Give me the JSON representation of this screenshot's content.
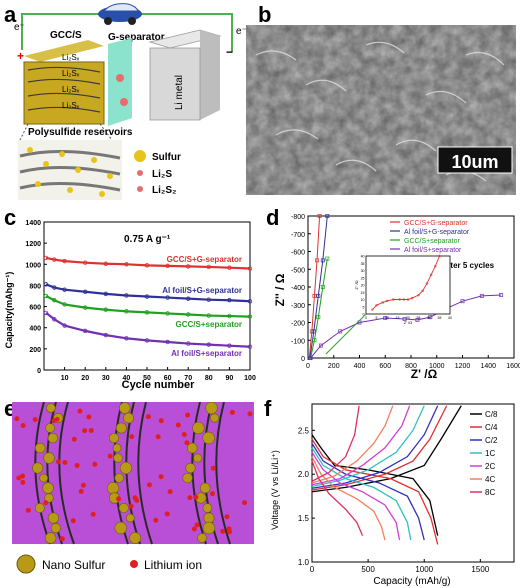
{
  "panel_labels": {
    "a": "a",
    "b": "b",
    "c": "c",
    "d": "d",
    "e": "e",
    "f": "f"
  },
  "panel_a": {
    "electron_left": "e⁻",
    "electron_right": "e⁻",
    "plus": "+",
    "minus": "−",
    "cathode_label": "GCC/S",
    "separator_label": "G-separator",
    "anode_label": "Li metal",
    "reservoir_label": "Polysulfide reservoirs",
    "layer_labels": [
      "Li₂Sₓ",
      "Li₂Sₓ",
      "Li₂Sₓ",
      "Li₂Sₓ"
    ],
    "legend": [
      "Sulfur",
      "Li₂S",
      "Li₂S₂"
    ],
    "colors": {
      "sulfur": "#e6c419",
      "li2s": "#e86c6c",
      "separator": "#7fe0c8",
      "lithium": "#cfcfcf"
    }
  },
  "panel_b": {
    "scale_bar": "10um"
  },
  "panel_e": {
    "legend": [
      "Nano Sulfur",
      "Lithium ion"
    ],
    "colors": {
      "background": "#b84fd6",
      "sulfur": "#b89a16",
      "lithium": "#e02020"
    }
  },
  "chart_data": [
    {
      "panel": "c",
      "type": "scatter",
      "annotation": "0.75 A g⁻¹",
      "xlabel": "Cycle number",
      "ylabel": "Capacity(mAhg⁻¹)",
      "xlim": [
        0,
        100
      ],
      "ylim": [
        0,
        1400
      ],
      "xticks": [
        10,
        20,
        30,
        40,
        50,
        60,
        70,
        80,
        90,
        100
      ],
      "yticks": [
        0,
        200,
        400,
        600,
        800,
        1000,
        1200,
        1400
      ],
      "series": [
        {
          "name": "GCC/S+G-separator",
          "color": "#e03030",
          "x": [
            1,
            5,
            10,
            20,
            30,
            40,
            50,
            60,
            70,
            80,
            90,
            100
          ],
          "y": [
            1060,
            1045,
            1030,
            1015,
            1005,
            1000,
            990,
            985,
            980,
            975,
            968,
            960
          ]
        },
        {
          "name": "Al foil/S+G-separator",
          "color": "#30309a",
          "x": [
            1,
            5,
            10,
            20,
            30,
            40,
            50,
            60,
            70,
            80,
            90,
            100
          ],
          "y": [
            810,
            780,
            760,
            740,
            720,
            705,
            695,
            685,
            675,
            665,
            660,
            650
          ]
        },
        {
          "name": "GCC/S+separator",
          "color": "#20a020",
          "x": [
            1,
            5,
            10,
            20,
            30,
            40,
            50,
            60,
            70,
            80,
            90,
            100
          ],
          "y": [
            700,
            660,
            620,
            590,
            570,
            555,
            545,
            535,
            525,
            515,
            510,
            505
          ]
        },
        {
          "name": "Al foil/S+separator",
          "color": "#7030b0",
          "x": [
            1,
            5,
            10,
            20,
            30,
            40,
            50,
            60,
            70,
            80,
            90,
            100
          ],
          "y": [
            540,
            480,
            420,
            370,
            330,
            300,
            280,
            265,
            250,
            240,
            230,
            220
          ]
        }
      ]
    },
    {
      "panel": "d",
      "type": "line",
      "annotation": "After 5 cycles",
      "xlabel": "Z' /Ω",
      "ylabel": "Z'' / Ω",
      "xlim": [
        0,
        1600
      ],
      "ylim": [
        -800,
        0
      ],
      "xticks": [
        0,
        200,
        400,
        600,
        800,
        1000,
        1200,
        1400,
        1600
      ],
      "yticks": [
        -800,
        -700,
        -600,
        -500,
        -400,
        -300,
        -200,
        -100,
        0
      ],
      "series": [
        {
          "name": "GCC/S+G-separator",
          "color": "#e03030",
          "x": [
            10,
            30,
            50,
            70,
            90
          ],
          "y": [
            0,
            -150,
            -350,
            -550,
            -800
          ]
        },
        {
          "name": "Al foil/S+G-separator",
          "color": "#30309a",
          "x": [
            15,
            45,
            80,
            115,
            150
          ],
          "y": [
            0,
            -150,
            -350,
            -550,
            -800
          ]
        },
        {
          "name": "GCC/S+separator",
          "color": "#20a020",
          "x": [
            20,
            50,
            80,
            115,
            150
          ],
          "y": [
            0,
            -100,
            -230,
            -400,
            -560
          ]
        },
        {
          "name": "Al foil/S+separator",
          "color": "#7030b0",
          "x": [
            20,
            100,
            250,
            400,
            600,
            750,
            850,
            950,
            1050,
            1200,
            1350,
            1500
          ],
          "y": [
            0,
            -70,
            -150,
            -200,
            -225,
            -220,
            -215,
            -230,
            -270,
            -320,
            -350,
            -355
          ]
        }
      ],
      "inset": {
        "xlabel": "Z' /Ω",
        "ylabel": "Z'' /Ω",
        "xlim": [
          0,
          40
        ],
        "ylim": [
          0,
          40
        ],
        "xticks": [
          0,
          5,
          10,
          15,
          20,
          25,
          30,
          35,
          40
        ],
        "yticks": [
          0,
          5,
          10,
          15,
          20,
          25,
          30,
          35,
          40
        ],
        "x": [
          3,
          5,
          8,
          10,
          13,
          16,
          18,
          20,
          22,
          25,
          27,
          29,
          31,
          33,
          35
        ],
        "y": [
          3,
          6,
          8,
          9,
          10,
          10,
          10,
          10,
          11,
          13,
          16,
          21,
          27,
          33,
          40
        ]
      }
    },
    {
      "panel": "f",
      "type": "line",
      "xlabel": "Capacity (mAh/g)",
      "ylabel": "Voltage (V vs Li/Li⁺)",
      "xlim": [
        0,
        1800
      ],
      "ylim": [
        1.0,
        2.8
      ],
      "xticks": [
        0,
        500,
        1000,
        1500
      ],
      "yticks": [
        1.0,
        1.5,
        2.0,
        2.5
      ],
      "series": [
        {
          "name": "C/8",
          "color": "#000000",
          "charge": [
            [
              0,
              1.8
            ],
            [
              300,
              1.85
            ],
            [
              700,
              1.95
            ],
            [
              1000,
              2.1
            ],
            [
              1150,
              2.4
            ],
            [
              1330,
              2.78
            ]
          ],
          "discharge": [
            [
              0,
              2.45
            ],
            [
              80,
              2.3
            ],
            [
              200,
              2.1
            ],
            [
              500,
              2.05
            ],
            [
              900,
              1.95
            ],
            [
              1050,
              1.7
            ],
            [
              1120,
              1.3
            ]
          ]
        },
        {
          "name": "C/4",
          "color": "#e03030",
          "charge": [
            [
              0,
              1.82
            ],
            [
              300,
              1.88
            ],
            [
              650,
              2.0
            ],
            [
              900,
              2.15
            ],
            [
              1050,
              2.4
            ],
            [
              1200,
              2.78
            ]
          ],
          "discharge": [
            [
              0,
              2.4
            ],
            [
              100,
              2.2
            ],
            [
              300,
              2.05
            ],
            [
              700,
              1.95
            ],
            [
              950,
              1.8
            ],
            [
              1060,
              1.5
            ],
            [
              1120,
              1.2
            ]
          ]
        },
        {
          "name": "C/2",
          "color": "#3030c0",
          "charge": [
            [
              0,
              1.84
            ],
            [
              300,
              1.9
            ],
            [
              600,
              2.02
            ],
            [
              850,
              2.2
            ],
            [
              1000,
              2.45
            ],
            [
              1120,
              2.78
            ]
          ],
          "discharge": [
            [
              0,
              2.35
            ],
            [
              100,
              2.15
            ],
            [
              300,
              2.0
            ],
            [
              600,
              1.9
            ],
            [
              850,
              1.75
            ],
            [
              950,
              1.5
            ],
            [
              1000,
              1.25
            ]
          ]
        },
        {
          "name": "1C",
          "color": "#30c0c0",
          "charge": [
            [
              0,
              1.86
            ],
            [
              250,
              1.93
            ],
            [
              500,
              2.05
            ],
            [
              750,
              2.25
            ],
            [
              900,
              2.5
            ],
            [
              1000,
              2.78
            ]
          ],
          "discharge": [
            [
              0,
              2.3
            ],
            [
              100,
              2.1
            ],
            [
              300,
              1.95
            ],
            [
              550,
              1.85
            ],
            [
              750,
              1.7
            ],
            [
              850,
              1.45
            ],
            [
              880,
              1.25
            ]
          ]
        },
        {
          "name": "2C",
          "color": "#d040d0",
          "charge": [
            [
              0,
              1.88
            ],
            [
              250,
              1.95
            ],
            [
              450,
              2.1
            ],
            [
              650,
              2.3
            ],
            [
              800,
              2.55
            ],
            [
              870,
              2.78
            ]
          ],
          "discharge": [
            [
              0,
              2.25
            ],
            [
              100,
              2.05
            ],
            [
              250,
              1.9
            ],
            [
              450,
              1.8
            ],
            [
              650,
              1.65
            ],
            [
              750,
              1.45
            ],
            [
              780,
              1.25
            ]
          ]
        },
        {
          "name": "4C",
          "color": "#f08060",
          "charge": [
            [
              0,
              1.9
            ],
            [
              200,
              1.98
            ],
            [
              400,
              2.15
            ],
            [
              550,
              2.35
            ],
            [
              650,
              2.55
            ],
            [
              720,
              2.78
            ]
          ],
          "discharge": [
            [
              0,
              2.2
            ],
            [
              80,
              2.0
            ],
            [
              200,
              1.85
            ],
            [
              400,
              1.72
            ],
            [
              550,
              1.58
            ],
            [
              620,
              1.4
            ],
            [
              650,
              1.25
            ]
          ]
        },
        {
          "name": "8C",
          "color": "#e03060",
          "charge": [
            [
              0,
              1.92
            ],
            [
              150,
              2.02
            ],
            [
              300,
              2.2
            ],
            [
              380,
              2.45
            ],
            [
              420,
              2.78
            ]
          ],
          "discharge": [
            [
              0,
              2.15
            ],
            [
              60,
              1.95
            ],
            [
              150,
              1.78
            ],
            [
              300,
              1.6
            ],
            [
              400,
              1.45
            ],
            [
              450,
              1.3
            ]
          ]
        }
      ]
    }
  ]
}
